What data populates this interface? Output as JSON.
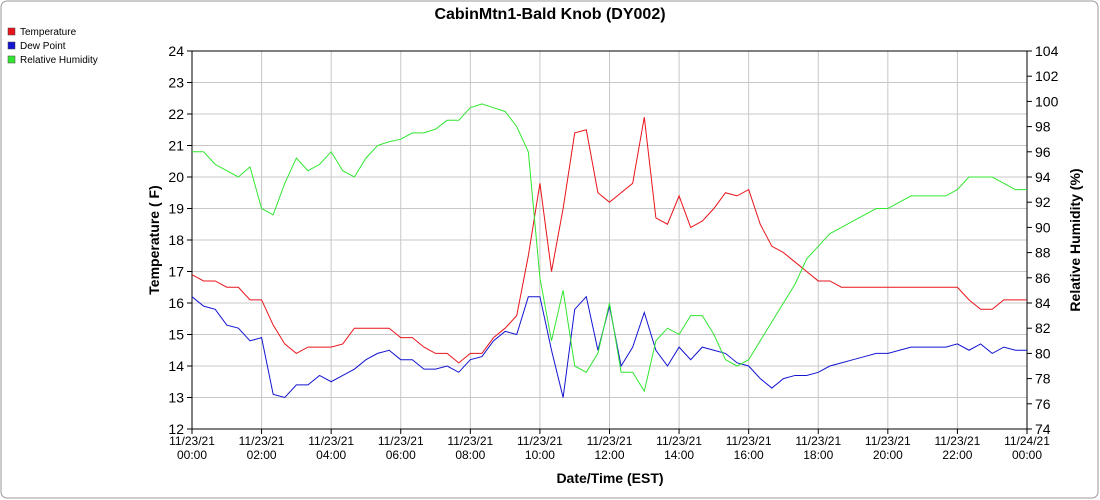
{
  "chart_data": {
    "type": "line",
    "title": "CabinMtn1-Bald Knob (DY002)",
    "xlabel": "Date/Time (EST)",
    "ylabel": "Temperature ( F)",
    "y2label": "Relative Humidity (%)",
    "legend": "upper left",
    "grid": true,
    "x": [
      "11/23/21 00:00",
      "11/23/21 00:20",
      "11/23/21 00:40",
      "11/23/21 01:00",
      "11/23/21 01:20",
      "11/23/21 01:40",
      "11/23/21 02:00",
      "11/23/21 02:20",
      "11/23/21 02:40",
      "11/23/21 03:00",
      "11/23/21 03:20",
      "11/23/21 03:40",
      "11/23/21 04:00",
      "11/23/21 04:20",
      "11/23/21 04:40",
      "11/23/21 05:00",
      "11/23/21 05:20",
      "11/23/21 05:40",
      "11/23/21 06:00",
      "11/23/21 06:20",
      "11/23/21 06:40",
      "11/23/21 07:00",
      "11/23/21 07:20",
      "11/23/21 07:40",
      "11/23/21 08:00",
      "11/23/21 08:20",
      "11/23/21 08:40",
      "11/23/21 09:00",
      "11/23/21 09:20",
      "11/23/21 09:40",
      "11/23/21 10:00",
      "11/23/21 10:20",
      "11/23/21 10:40",
      "11/23/21 11:00",
      "11/23/21 11:20",
      "11/23/21 11:40",
      "11/23/21 12:00",
      "11/23/21 12:20",
      "11/23/21 12:40",
      "11/23/21 13:00",
      "11/23/21 13:20",
      "11/23/21 13:40",
      "11/23/21 14:00",
      "11/23/21 14:20",
      "11/23/21 14:40",
      "11/23/21 15:00",
      "11/23/21 15:20",
      "11/23/21 15:40",
      "11/23/21 16:00",
      "11/23/21 16:20",
      "11/23/21 16:40",
      "11/23/21 17:00",
      "11/23/21 17:20",
      "11/23/21 17:40",
      "11/23/21 18:00",
      "11/23/21 18:20",
      "11/23/21 18:40",
      "11/23/21 19:00",
      "11/23/21 19:20",
      "11/23/21 19:40",
      "11/23/21 20:00",
      "11/23/21 20:20",
      "11/23/21 20:40",
      "11/23/21 21:00",
      "11/23/21 21:20",
      "11/23/21 21:40",
      "11/23/21 22:00",
      "11/23/21 22:20",
      "11/23/21 22:40",
      "11/23/21 23:00",
      "11/23/21 23:20",
      "11/23/21 23:40",
      "11/24/21 00:00"
    ],
    "xlim": [
      "11/23/21 00:00",
      "11/24/21 00:00"
    ],
    "xticks": [
      "11/23/21 00:00",
      "11/23/21 02:00",
      "11/23/21 04:00",
      "11/23/21 06:00",
      "11/23/21 08:00",
      "11/23/21 10:00",
      "11/23/21 12:00",
      "11/23/21 14:00",
      "11/23/21 16:00",
      "11/23/21 18:00",
      "11/23/21 20:00",
      "11/23/21 22:00",
      "11/24/21 00:00"
    ],
    "ylim": [
      12,
      24
    ],
    "yticks": [
      12,
      13,
      14,
      15,
      16,
      17,
      18,
      19,
      20,
      21,
      22,
      23,
      24
    ],
    "y2lim": [
      74,
      104
    ],
    "y2ticks": [
      74,
      76,
      78,
      80,
      82,
      84,
      86,
      88,
      90,
      92,
      94,
      96,
      98,
      100,
      102,
      104
    ],
    "series": [
      {
        "name": "Temperature",
        "color": "#e8141b",
        "values": [
          16.9,
          16.7,
          16.7,
          16.5,
          16.5,
          16.1,
          16.1,
          15.3,
          14.7,
          14.4,
          14.6,
          14.6,
          14.6,
          14.7,
          15.2,
          15.2,
          15.2,
          15.2,
          14.9,
          14.9,
          14.6,
          14.4,
          14.4,
          14.1,
          14.4,
          14.4,
          14.9,
          15.2,
          15.6,
          17.5,
          19.8,
          17.0,
          19.0,
          21.4,
          21.5,
          19.5,
          19.2,
          19.5,
          19.8,
          21.9,
          18.7,
          18.5,
          19.4,
          18.4,
          18.6,
          19.0,
          19.5,
          19.4,
          19.6,
          18.5,
          17.8,
          17.6,
          17.3,
          17.0,
          16.7,
          16.7,
          16.5,
          16.5,
          16.5,
          16.5,
          16.5,
          16.5,
          16.5,
          16.5,
          16.5,
          16.5,
          16.5,
          16.1,
          15.8,
          15.8,
          16.1,
          16.1,
          16.1
        ]
      },
      {
        "name": "Dew Point",
        "color": "#1414d2",
        "values": [
          16.2,
          15.9,
          15.8,
          15.3,
          15.2,
          14.8,
          14.9,
          13.1,
          13.0,
          13.4,
          13.4,
          13.7,
          13.5,
          13.7,
          13.9,
          14.2,
          14.4,
          14.5,
          14.2,
          14.2,
          13.9,
          13.9,
          14.0,
          13.8,
          14.2,
          14.3,
          14.8,
          15.1,
          15.0,
          16.2,
          16.2,
          14.5,
          13.0,
          15.8,
          16.2,
          14.5,
          15.9,
          14.0,
          14.6,
          15.7,
          14.5,
          14.0,
          14.6,
          14.2,
          14.6,
          14.5,
          14.4,
          14.1,
          14.0,
          13.6,
          13.3,
          13.6,
          13.7,
          13.7,
          13.8,
          14.0,
          14.1,
          14.2,
          14.3,
          14.4,
          14.4,
          14.5,
          14.6,
          14.6,
          14.6,
          14.6,
          14.7,
          14.5,
          14.7,
          14.4,
          14.6,
          14.5,
          14.5
        ]
      },
      {
        "name": "Relative Humidity",
        "color": "#32e632",
        "axis": "y2",
        "values": [
          96.0,
          96.0,
          95.0,
          94.5,
          94.0,
          94.8,
          91.5,
          91.0,
          93.5,
          95.5,
          94.5,
          95.0,
          96.0,
          94.5,
          94.0,
          95.5,
          96.5,
          96.8,
          97.0,
          97.5,
          97.5,
          97.8,
          98.5,
          98.5,
          99.5,
          99.8,
          99.5,
          99.2,
          98.0,
          96.0,
          86.0,
          81.0,
          85.0,
          79.0,
          78.5,
          80.0,
          84.0,
          78.5,
          78.5,
          77.0,
          81.0,
          82.0,
          81.5,
          83.0,
          83.0,
          81.5,
          79.5,
          79.0,
          79.5,
          81.0,
          82.5,
          84.0,
          85.5,
          87.5,
          88.5,
          89.5,
          90.0,
          90.5,
          91.0,
          91.5,
          91.5,
          92.0,
          92.5,
          92.5,
          92.5,
          92.5,
          93.0,
          94.0,
          94.0,
          94.0,
          93.5,
          93.0,
          93.0
        ]
      }
    ]
  }
}
